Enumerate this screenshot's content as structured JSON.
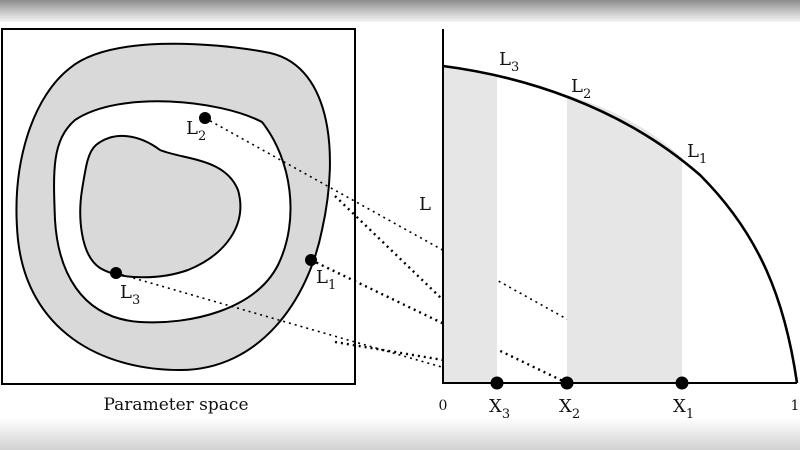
{
  "left_panel": {
    "caption": "Parameter space",
    "points": [
      {
        "name": "L",
        "sub": "2"
      },
      {
        "name": "L",
        "sub": "3"
      },
      {
        "name": "L",
        "sub": "1"
      }
    ]
  },
  "right_panel": {
    "y_axis_label": "L",
    "x_min_label": "0",
    "x_max_label": "1",
    "curve_labels": [
      {
        "name": "L",
        "sub": "3"
      },
      {
        "name": "L",
        "sub": "2"
      },
      {
        "name": "L",
        "sub": "1"
      }
    ],
    "x_points": [
      {
        "name": "X",
        "sub": "3"
      },
      {
        "name": "X",
        "sub": "2"
      },
      {
        "name": "X",
        "sub": "1"
      }
    ]
  },
  "colors": {
    "fill_gray": "#d9d9d9",
    "band_gray": "#e6e6e6",
    "line": "#000000"
  }
}
